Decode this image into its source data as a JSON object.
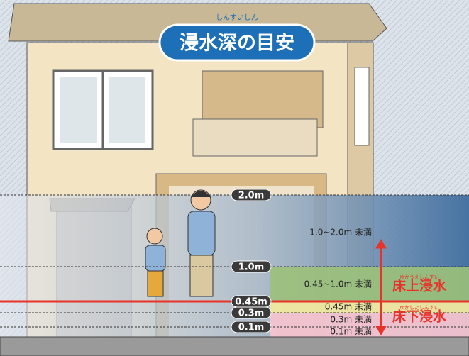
{
  "title": {
    "text": "浸水深の目安",
    "ruby": "しんすいしん"
  },
  "levels": [
    "2.0m",
    "1.0m",
    "0.45m",
    "0.3m",
    "0.1m"
  ],
  "ranges": [
    "1.0~2.0m 未満",
    "0.45~1.0m 未満",
    "0.45m 未満",
    "0.3m 未満",
    "0.1m 未満"
  ],
  "categories": [
    {
      "text": "床上浸水",
      "ruby": "ゆかうえしんすい"
    },
    {
      "text": "床下浸水",
      "ruby": "ゆかしたしんすい"
    }
  ]
}
